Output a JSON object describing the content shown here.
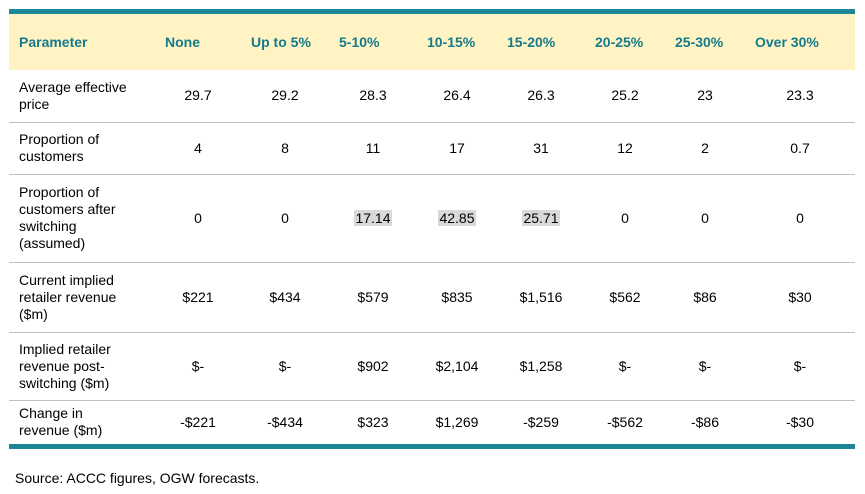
{
  "table": {
    "headers": [
      "Parameter",
      "None",
      "Up to 5%",
      "5-10%",
      "10-15%",
      "15-20%",
      "20-25%",
      "25-30%",
      "Over 30%"
    ],
    "rows": [
      {
        "label": [
          "Average effective",
          "price"
        ],
        "values": [
          "29.7",
          "29.2",
          "28.3",
          "26.4",
          "26.3",
          "25.2",
          "23",
          "23.3"
        ]
      },
      {
        "label": [
          "Proportion of",
          "customers"
        ],
        "values": [
          "4",
          "8",
          "11",
          "17",
          "31",
          "12",
          "2",
          "0.7"
        ]
      },
      {
        "label": [
          "Proportion of",
          "customers after",
          "switching",
          "(assumed)"
        ],
        "values": [
          "0",
          "0",
          "17.14",
          "42.85",
          "25.71",
          "0",
          "0",
          "0"
        ]
      },
      {
        "label": [
          "Current implied",
          "retailer revenue",
          "($m)"
        ],
        "values": [
          "$221",
          "$434",
          "$579",
          "$835",
          "$1,516",
          "$562",
          "$86",
          "$30"
        ]
      },
      {
        "label": [
          "Implied retailer",
          "revenue post-",
          "switching ($m)"
        ],
        "values": [
          "$-",
          "$-",
          "$902",
          "$2,104",
          "$1,258",
          "$-",
          "$-",
          "$-"
        ]
      },
      {
        "label": [
          "Change in",
          "revenue ($m)"
        ],
        "values": [
          "-$221",
          "-$434",
          "$323",
          "$1,269",
          "-$259",
          "-$562",
          "-$86",
          "-$30"
        ]
      }
    ]
  },
  "source": "Source: ACCC figures, OGW forecasts."
}
